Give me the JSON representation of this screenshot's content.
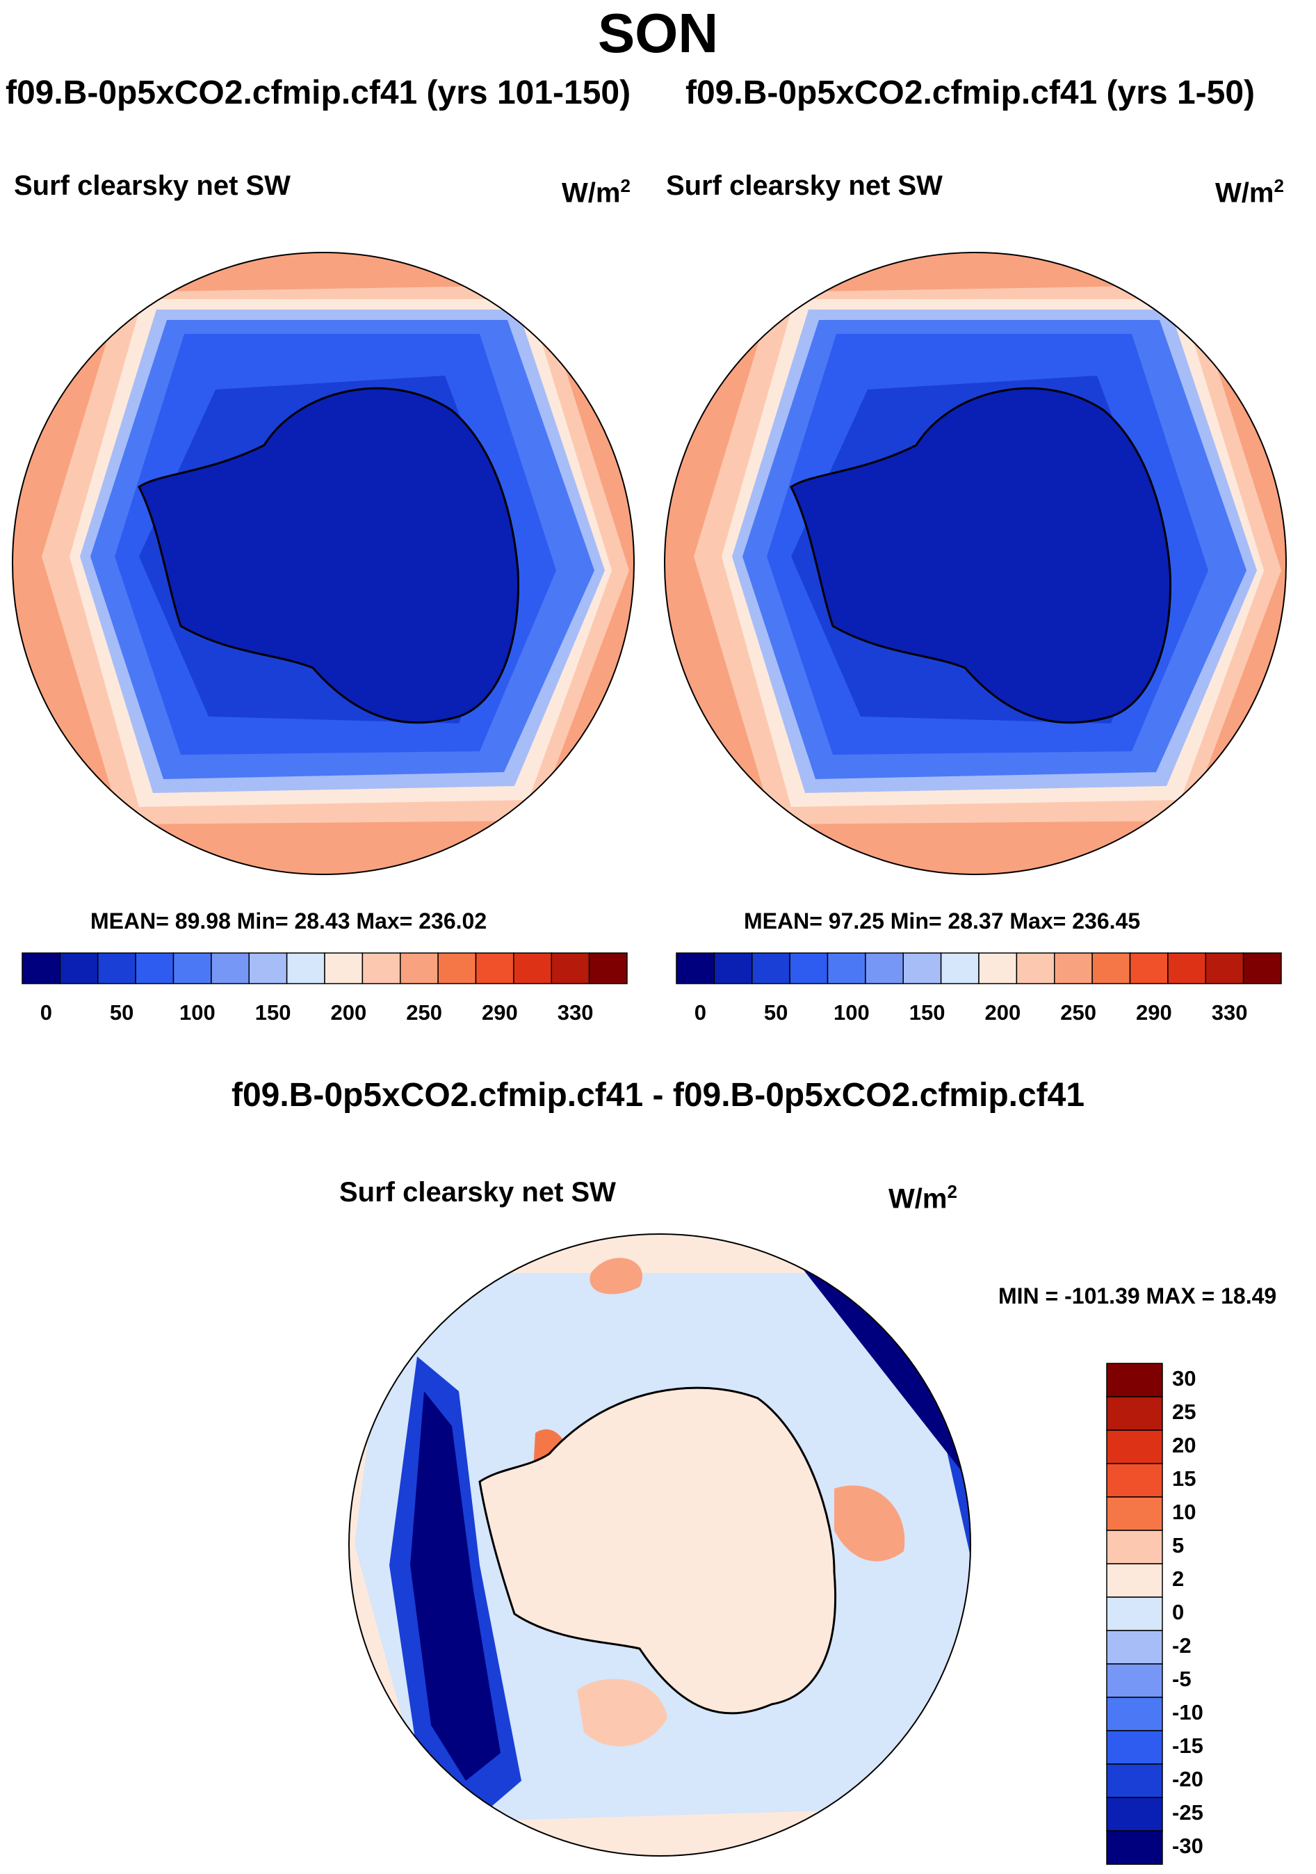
{
  "title": "SON",
  "panels": [
    {
      "run_title": "f09.B-0p5xCO2.cfmip.cf41 (yrs 101-150)",
      "variable": "Surf clearsky net SW",
      "units_base": "W/m",
      "units_exp": "2",
      "stats": "MEAN=  89.98  Min=  28.43  Max= 236.02"
    },
    {
      "run_title": "f09.B-0p5xCO2.cfmip.cf41 (yrs 1-50)",
      "variable": "Surf clearsky net SW",
      "units_base": "W/m",
      "units_exp": "2",
      "stats": "MEAN=  97.25  Min=  28.37  Max= 236.45"
    }
  ],
  "diff_panel": {
    "run_title": "f09.B-0p5xCO2.cfmip.cf41 - f09.B-0p5xCO2.cfmip.cf41",
    "variable": "Surf clearsky net SW",
    "units_base": "W/m",
    "units_exp": "2",
    "stats": "MIN = -101.39 MAX =  18.49"
  },
  "colorbar_abs": {
    "colors": [
      "#00007f",
      "#0a1fb3",
      "#1a3fd6",
      "#2e5cf0",
      "#4b78f5",
      "#7797f6",
      "#a7bdf8",
      "#d6e6fb",
      "#fde9dc",
      "#fcc9b0",
      "#f9a27f",
      "#f57748",
      "#f0502a",
      "#de3216",
      "#b51a0b",
      "#7f0000"
    ],
    "tick_labels": [
      "0",
      "50",
      "100",
      "150",
      "200",
      "250",
      "290",
      "330"
    ]
  },
  "colorbar_diff": {
    "colors": [
      "#7f0000",
      "#b51a0b",
      "#de3216",
      "#f0502a",
      "#f57748",
      "#fcc9b0",
      "#fde9dc",
      "#d6e6fb",
      "#a7bdf8",
      "#7797f6",
      "#4b78f5",
      "#2e5cf0",
      "#1a3fd6",
      "#0a1fb3",
      "#00007f"
    ],
    "tick_labels": [
      "30",
      "25",
      "20",
      "15",
      "10",
      "5",
      "2",
      "0",
      "-2",
      "-5",
      "-10",
      "-15",
      "-20",
      "-25",
      "-30"
    ]
  }
}
